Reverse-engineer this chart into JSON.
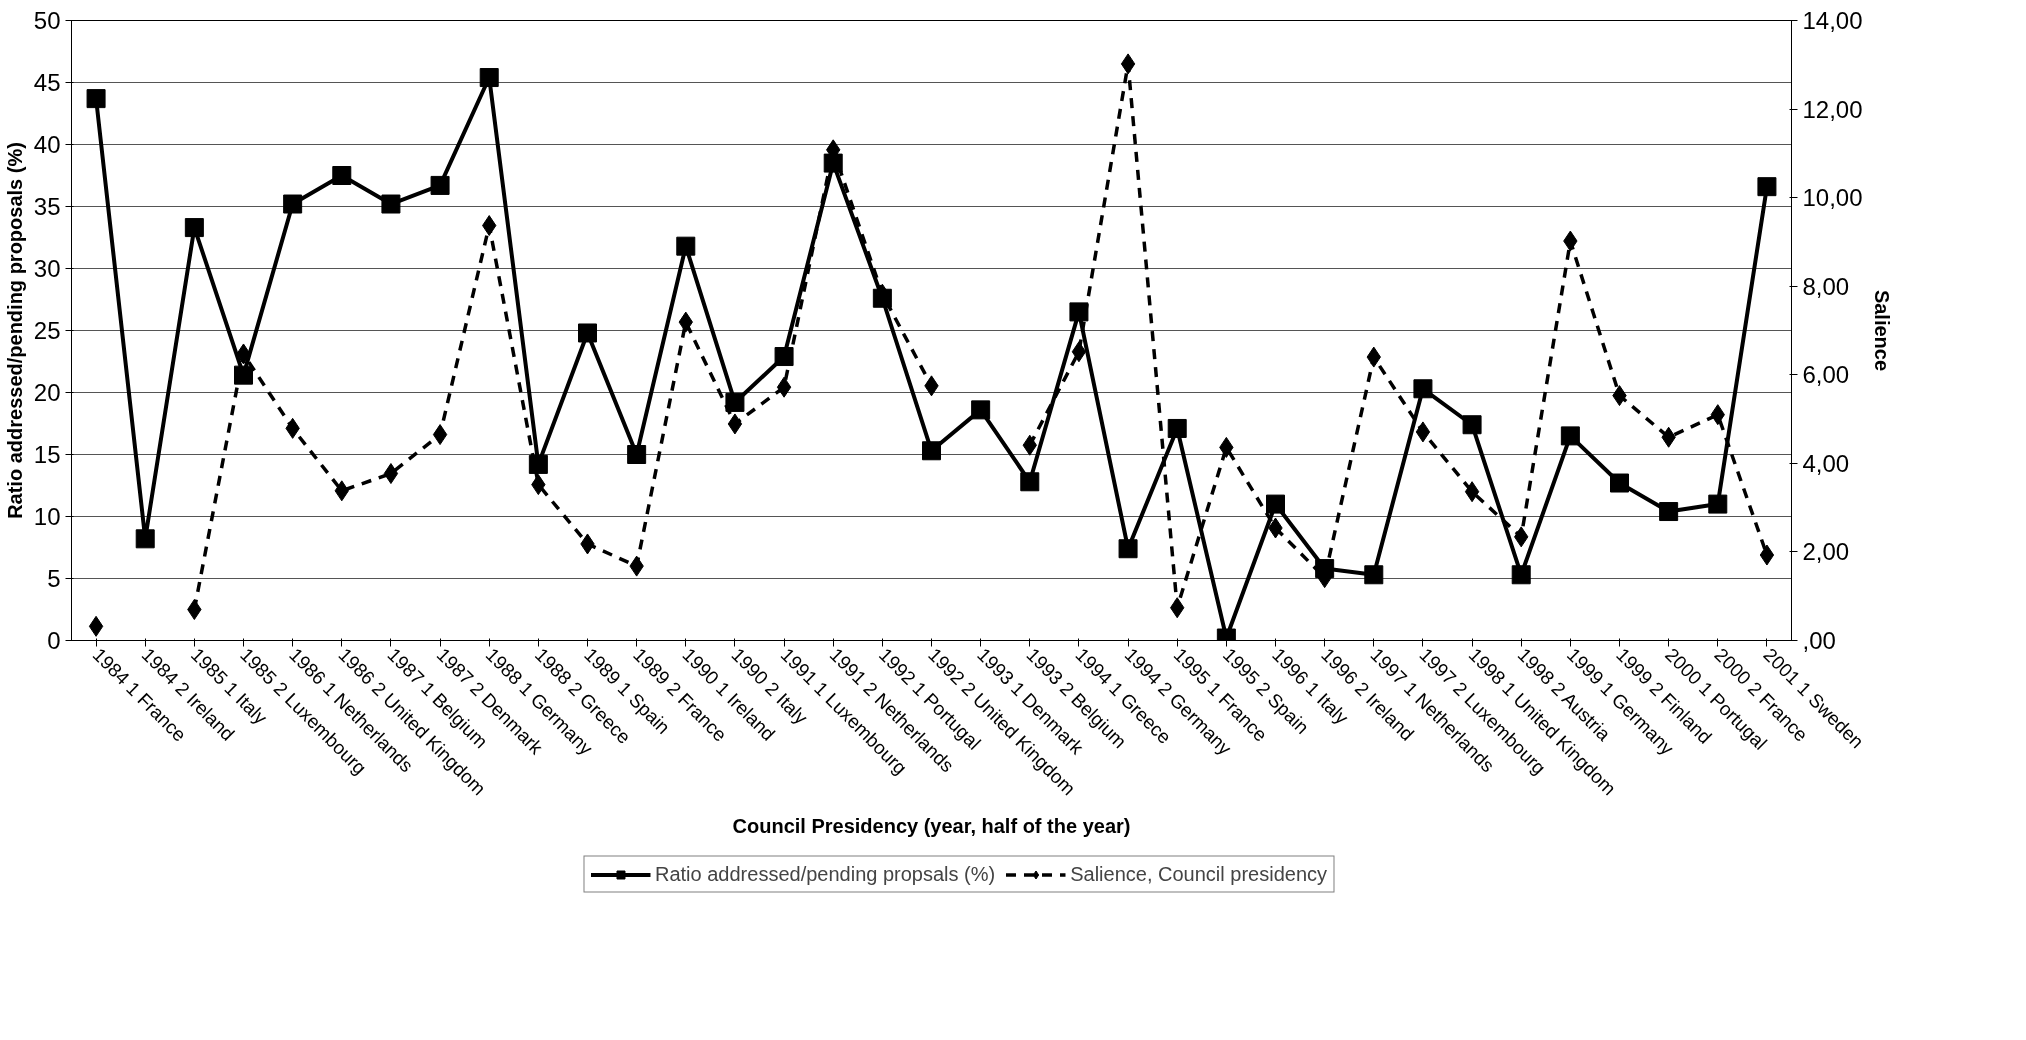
{
  "chart_data": {
    "type": "line",
    "xlabel": "Council Presidency (year, half of the year)",
    "ylabel": "Ratio addressed/pending proposals (%)",
    "y2label": "Salience",
    "categories": [
      "1984 1 France",
      "1984 2 Ireland",
      "1985 1 Italy",
      "1985 2 Luxembourg",
      "1986 1 Netherlands",
      "1986 2 United Kingdom",
      "1987 1 Belgium",
      "1987 2 Denmark",
      "1988 1 Germany",
      "1988 2 Greece",
      "1989 1 Spain",
      "1989 2 France",
      "1990 1 Ireland",
      "1990 2 Italy",
      "1991 1 Luxembourg",
      "1991 2 Netherlands",
      "1992 1 Portugal",
      "1992 2 United Kingdom",
      "1993 1 Denmark",
      "1993 2 Belgium",
      "1994 1 Greece",
      "1994 2 Germany",
      "1995 1 France",
      "1995 2 Spain",
      "1996 1 Italy",
      "1996 2 Ireland",
      "1997 1 Netherlands",
      "1997 2 Luxembourg",
      "1998 1 United Kingdom",
      "1998 2 Austria",
      "1999 1 Germany",
      "1999 2 Finland",
      "2000 1 Portugal",
      "2000 2 France",
      "2001 1 Sweden"
    ],
    "series": [
      {
        "name": "Ratio addressed/pending propsals (%)",
        "color": "#000000",
        "marker": "square",
        "line_style": "solid",
        "values": [
          43.7,
          8.2,
          33.3,
          21.4,
          35.2,
          37.5,
          35.2,
          36.7,
          45.4,
          14.2,
          24.8,
          15.0,
          31.8,
          19.2,
          22.9,
          38.5,
          27.6,
          15.3,
          18.6,
          12.8,
          26.5,
          7.4,
          17.1,
          0.2,
          11.0,
          5.8,
          5.3,
          20.3,
          17.4,
          5.3,
          16.5,
          12.7,
          10.4,
          11.0,
          36.6
        ]
      },
      {
        "name": "Salience, Council presidency",
        "color": "#000000",
        "marker": "diamond",
        "line_style": "dashed",
        "axis": "y2",
        "values": [
          0.32,
          null,
          0.7,
          6.47,
          4.79,
          3.38,
          3.77,
          4.65,
          9.37,
          3.52,
          2.18,
          1.68,
          7.19,
          4.89,
          5.72,
          11.08,
          7.82,
          5.75,
          null,
          4.41,
          6.52,
          13.02,
          0.74,
          4.36,
          2.54,
          1.42,
          6.4,
          4.71,
          3.36,
          2.34,
          9.02,
          5.53,
          4.59,
          5.1,
          1.93
        ]
      }
    ],
    "ylim": [
      0,
      50
    ],
    "yticks": [
      0,
      5,
      10,
      15,
      20,
      25,
      30,
      35,
      40,
      45,
      50
    ],
    "y2lim": [
      0,
      14
    ],
    "y2ticks": [
      {
        "value": 0,
        "label": ",00"
      },
      {
        "value": 2,
        "label": "2,00"
      },
      {
        "value": 4,
        "label": "4,00"
      },
      {
        "value": 6,
        "label": "6,00"
      },
      {
        "value": 8,
        "label": "8,00"
      },
      {
        "value": 10,
        "label": "10,00"
      },
      {
        "value": 12,
        "label": "12,00"
      },
      {
        "value": 14,
        "label": "14,00"
      }
    ],
    "grid": "y",
    "legend": "bottom"
  }
}
